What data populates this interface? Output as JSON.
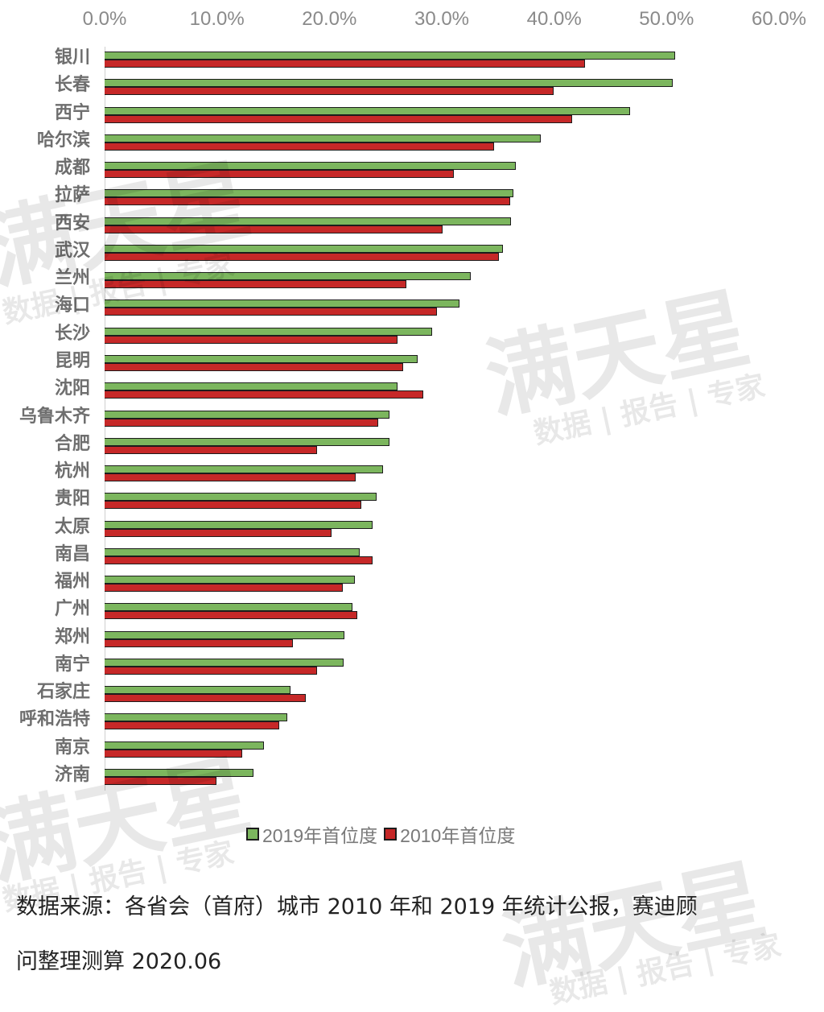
{
  "chart_data": {
    "type": "bar",
    "orientation": "horizontal",
    "title": "",
    "xlabel": "",
    "ylabel": "",
    "xlim": [
      0,
      60
    ],
    "x_ticks": [
      "0.0%",
      "10.0%",
      "20.0%",
      "30.0%",
      "40.0%",
      "50.0%",
      "60.0%"
    ],
    "x_axis_position": "top",
    "grid": false,
    "legend_position": "bottom",
    "categories": [
      "银川",
      "长春",
      "西宁",
      "哈尔滨",
      "成都",
      "拉萨",
      "西安",
      "武汉",
      "兰州",
      "海口",
      "长沙",
      "昆明",
      "沈阳",
      "乌鲁木齐",
      "合肥",
      "杭州",
      "贵阳",
      "太原",
      "南昌",
      "福州",
      "广州",
      "郑州",
      "南宁",
      "石家庄",
      "呼和浩特",
      "南京",
      "济南"
    ],
    "series": [
      {
        "name": "2019年首位度",
        "color": "#7cb65e",
        "values": [
          50.7,
          50.5,
          46.7,
          38.7,
          36.5,
          36.3,
          36.1,
          35.4,
          32.5,
          31.5,
          29.1,
          27.8,
          26.0,
          25.3,
          25.3,
          24.7,
          24.1,
          23.8,
          22.6,
          22.2,
          22.0,
          21.3,
          21.2,
          16.5,
          16.2,
          14.1,
          13.2
        ]
      },
      {
        "name": "2010年首位度",
        "color": "#c62828",
        "values": [
          42.7,
          39.9,
          41.5,
          34.6,
          31.0,
          36.0,
          30.0,
          35.0,
          26.8,
          29.5,
          26.0,
          26.5,
          28.3,
          24.3,
          18.8,
          22.3,
          22.8,
          20.1,
          23.8,
          21.1,
          22.4,
          16.7,
          18.8,
          17.8,
          15.5,
          12.2,
          9.9
        ]
      }
    ]
  },
  "legend": {
    "items": [
      {
        "label": "2019年首位度",
        "color": "#7cb65e"
      },
      {
        "label": "2010年首位度",
        "color": "#c62828"
      }
    ]
  },
  "footer": {
    "line1": "数据来源：各省会（首府）城市 2010 年和 2019 年统计公报，赛迪顾",
    "line2": "问整理测算 2020.06"
  },
  "watermark": {
    "brand": "满天星",
    "tagline": "数据 | 报告 | 专家"
  }
}
